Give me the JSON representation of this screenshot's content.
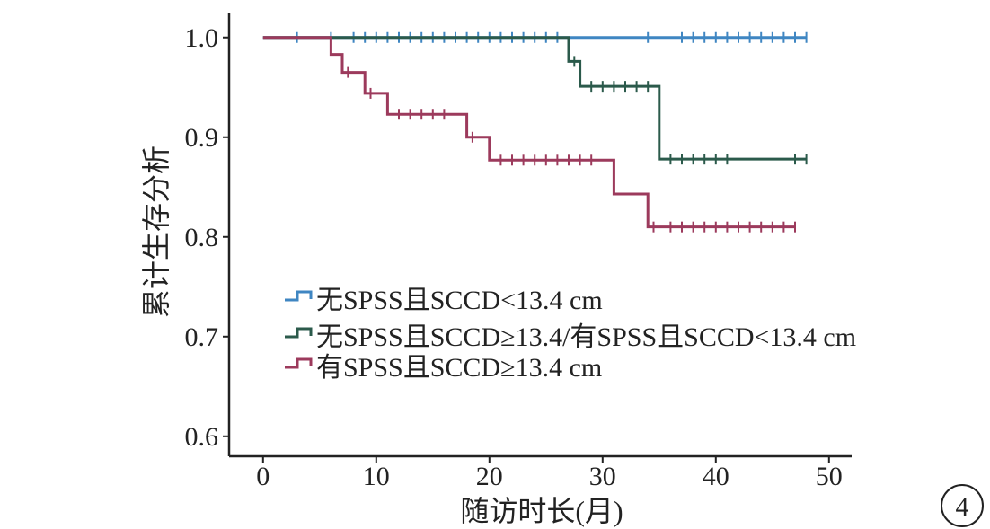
{
  "chart_data": {
    "type": "line",
    "subtype": "kaplan-meier",
    "xlabel": "随访时长(月)",
    "ylabel": "累计生存分析",
    "xlim": [
      -3,
      52
    ],
    "ylim": [
      0.58,
      1.025
    ],
    "x_ticks": [
      "0",
      "10",
      "20",
      "30",
      "40",
      "50"
    ],
    "y_ticks": [
      "0.6",
      "0.7",
      "0.8",
      "0.9",
      "1.0"
    ],
    "panel_label": "4",
    "legend_position": "center-left",
    "series": [
      {
        "name": "无SPSS且SCCD<13.4 cm",
        "color": "#3f86c2",
        "steps": [
          [
            0,
            1.0
          ],
          [
            48,
            1.0
          ]
        ],
        "censored": [
          3,
          6,
          8,
          9,
          10,
          11,
          12,
          13,
          14,
          15,
          16,
          17,
          18,
          19,
          20,
          21,
          22,
          23,
          24,
          25,
          26,
          34,
          37,
          38,
          39,
          40,
          41,
          42,
          43,
          44,
          45,
          46,
          47,
          48
        ]
      },
      {
        "name": "无SPSS且SCCD≥13.4/有SPSS且SCCD<13.4 cm",
        "color": "#2b5a4b",
        "steps": [
          [
            0,
            1.0
          ],
          [
            27,
            0.976
          ],
          [
            28,
            0.951
          ],
          [
            35,
            0.878
          ],
          [
            48,
            0.878
          ]
        ],
        "censored": [
          27.5,
          29,
          30,
          31,
          32,
          33,
          34,
          36,
          37,
          38,
          39,
          40,
          41,
          47,
          48
        ]
      },
      {
        "name": "有SPSS且SCCD≥13.4 cm",
        "color": "#9c3a5c",
        "steps": [
          [
            0,
            1.0
          ],
          [
            6,
            0.983
          ],
          [
            7,
            0.965
          ],
          [
            9,
            0.944
          ],
          [
            11,
            0.923
          ],
          [
            18,
            0.9
          ],
          [
            20,
            0.877
          ],
          [
            31,
            0.843
          ],
          [
            34,
            0.81
          ],
          [
            47,
            0.81
          ]
        ],
        "censored": [
          7.5,
          9.5,
          12,
          13,
          14,
          15,
          16,
          18.5,
          21,
          22,
          23,
          24,
          25,
          26,
          27,
          28,
          29,
          34.5,
          36,
          37,
          38,
          39,
          40,
          41,
          42,
          43,
          44,
          45,
          46,
          47
        ]
      }
    ]
  }
}
